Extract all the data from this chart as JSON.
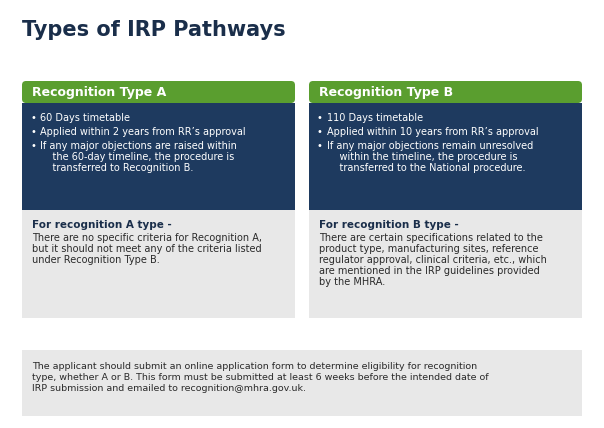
{
  "title": "Types of IRP Pathways",
  "title_color": "#1a2e4a",
  "title_fontsize": 15,
  "bg_color": "#ffffff",
  "green_color": "#5a9e2f",
  "dark_blue_color": "#1e3a5f",
  "light_gray_color": "#e8e8e8",
  "type_a_header": "Recognition Type A",
  "type_b_header": "Recognition Type B",
  "type_a_bullets": [
    "60 Days timetable",
    "Applied within 2 years from RR’s approval",
    "If any major objections are raised within\n    the 60-day timeline, the procedure is\n    transferred to Recognition B."
  ],
  "type_b_bullets": [
    "110 Days timetable",
    "Applied within 10 years from RR’s approval",
    "If any major objections remain unresolved\n    within the timeline, the procedure is\n    transferred to the National procedure."
  ],
  "type_a_bold_label": "For recognition A type -",
  "type_a_body": "There are no specific criteria for Recognition A,\nbut it should not meet any of the criteria listed\nunder Recognition Type B.",
  "type_b_bold_label": "For recognition B type -",
  "type_b_body": "There are certain specifications related to the\nproduct type, manufacturing sites, reference\nregulator approval, clinical criteria, etc., which\nare mentioned in the IRP guidelines provided\nby the MHRA.",
  "footer_text": "The applicant should submit an online application form to determine eligibility for recognition\ntype, whether A or B. This form must be submitted at least 6 weeks before the intended date of\nIRP submission and emailed to recognition@mhra.gov.uk.",
  "bullet_char": "•"
}
